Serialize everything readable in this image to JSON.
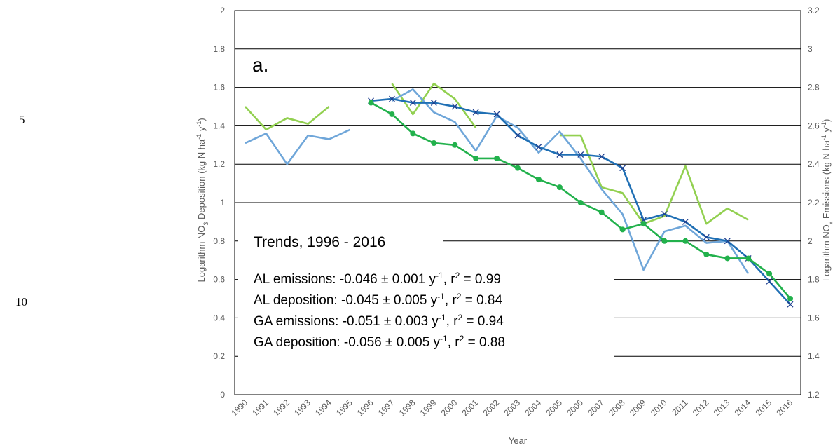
{
  "page_line_numbers": [
    "5",
    "10"
  ],
  "chart_data": {
    "type": "line",
    "x_label": "Year",
    "y_label": [
      "Logarithm NO",
      "3",
      " Deposition (kg N ha",
      "-1",
      " y",
      "-1",
      ")"
    ],
    "y2_label": [
      "Logarithm NO",
      "x",
      " Emissions (kg N ha",
      "-1",
      " y",
      "-1",
      ")"
    ],
    "annotations": [
      "a.",
      "Trends, 1996 - 2016"
    ],
    "trend_lines": [
      [
        "AL emissions: -0.046 ± 0.001 y",
        "-1",
        ", r",
        "2",
        " = 0.99"
      ],
      [
        "AL deposition: -0.045 ± 0.005 y",
        "-1",
        ", r",
        "2",
        " = 0.84"
      ],
      [
        "GA emissions: -0.051 ± 0.003 y",
        "-1",
        ", r",
        "2",
        " = 0.94"
      ],
      [
        "GA deposition: -0.056 ± 0.005 y",
        "-1",
        ", r",
        "2",
        " = 0.88"
      ]
    ],
    "categories": [
      "1990",
      "1991",
      "1992",
      "1993",
      "1994",
      "1995",
      "1996",
      "1997",
      "1998",
      "1999",
      "2000",
      "2001",
      "2002",
      "2003",
      "2004",
      "2005",
      "2006",
      "2007",
      "2008",
      "2009",
      "2010",
      "2011",
      "2012",
      "2013",
      "2014",
      "2015",
      "2016"
    ],
    "ylim": [
      0,
      2
    ],
    "yticks": [
      0,
      0.2,
      0.4,
      0.6,
      0.8,
      1,
      1.2,
      1.4,
      1.6,
      1.8,
      2
    ],
    "y2lim": [
      1.2,
      3.2
    ],
    "y2ticks": [
      1.2,
      1.4,
      1.6,
      1.8,
      2,
      2.2,
      2.4,
      2.6,
      2.8,
      3,
      3.2
    ],
    "grid": true,
    "series": [
      {
        "color": "#92d050",
        "values": [
          1.5,
          1.38,
          1.44,
          1.41,
          1.5,
          null,
          null,
          1.62,
          1.46,
          1.62,
          1.54,
          1.39,
          null,
          null,
          null,
          1.35,
          1.35,
          1.08,
          1.05,
          0.89,
          0.93,
          1.19,
          0.89,
          0.97,
          0.91,
          null,
          null
        ]
      },
      {
        "color": "#6fa6d9",
        "values": [
          1.31,
          1.36,
          1.2,
          1.35,
          1.33,
          1.38,
          null,
          1.53,
          1.59,
          1.47,
          1.42,
          1.27,
          1.45,
          1.39,
          1.26,
          1.37,
          1.23,
          1.07,
          0.94,
          0.65,
          0.85,
          0.88,
          0.79,
          0.8,
          0.63,
          null,
          null
        ]
      },
      {
        "color": "#1f6fb4",
        "axis": "y2",
        "marker": "x",
        "values": [
          null,
          null,
          null,
          null,
          null,
          null,
          2.73,
          2.74,
          2.72,
          2.72,
          2.7,
          2.67,
          2.66,
          2.55,
          2.49,
          2.45,
          2.45,
          2.44,
          2.38,
          2.11,
          2.14,
          2.1,
          2.02,
          2.0,
          1.91,
          1.79,
          1.67
        ]
      },
      {
        "color": "#22b14c",
        "axis": "y2",
        "marker": "circle",
        "values": [
          null,
          null,
          null,
          null,
          null,
          null,
          2.72,
          2.66,
          2.56,
          2.51,
          2.5,
          2.43,
          2.43,
          2.38,
          2.32,
          2.28,
          2.2,
          2.15,
          2.06,
          2.09,
          2.0,
          2.0,
          1.93,
          1.91,
          1.91,
          1.83,
          1.7
        ]
      }
    ]
  }
}
